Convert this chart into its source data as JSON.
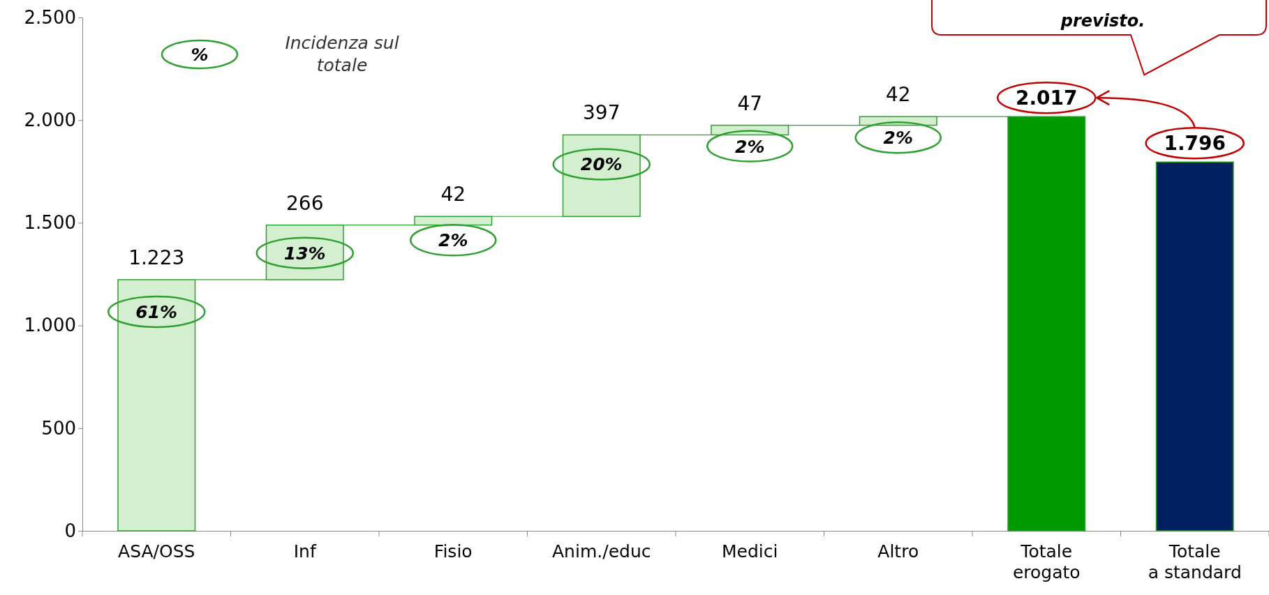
{
  "chart_data": {
    "type": "bar",
    "categories": [
      "ASA/OSS",
      "Inf",
      "Fisio",
      "Anim./educ",
      "Medici",
      "Altro",
      "Totale erogato",
      "Totale a standard"
    ],
    "values": [
      1223,
      266,
      42,
      397,
      47,
      42,
      2017,
      1796
    ],
    "base": [
      0,
      1223,
      1489,
      1531,
      1928,
      1975,
      0,
      0
    ],
    "colors": [
      "#d4eed0",
      "#d4eed0",
      "#d4eed0",
      "#d4eed0",
      "#d4eed0",
      "#d4eed0",
      "#009900",
      "#002060"
    ],
    "value_labels": [
      "1.223",
      "266",
      "42",
      "397",
      "47",
      "42",
      "2.017",
      "1.796"
    ],
    "ylim": [
      0,
      2500
    ],
    "yticks": [
      0,
      500,
      {
        "value": 1000,
        "label": "1.000"
      },
      {
        "value": 1500,
        "label": "1.500"
      },
      {
        "value": 2000,
        "label": "2.000"
      },
      {
        "value": 2500,
        "label": "2.500"
      }
    ],
    "grid": false,
    "annotations": [
      "61%",
      "13%",
      "2%",
      "20%",
      "2%",
      "2%",
      "%",
      "Incidenza sul totale",
      "previsto."
    ]
  }
}
